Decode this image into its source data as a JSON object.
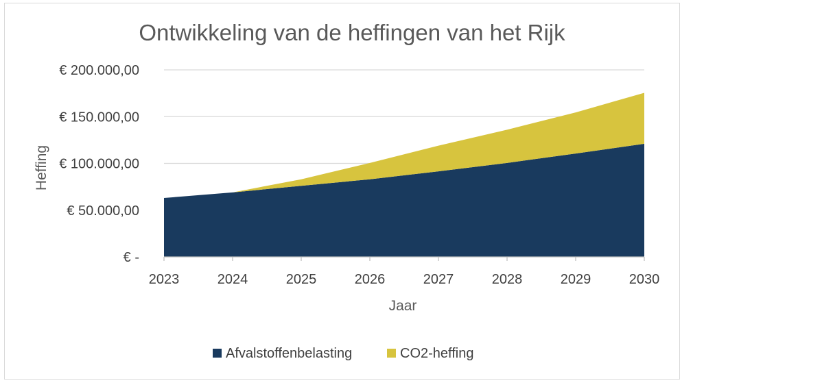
{
  "chart_data": {
    "type": "area",
    "stacked": true,
    "title": "Ontwikkeling van de heffingen van het Rijk",
    "xlabel": "Jaar",
    "ylabel": "Heffing",
    "categories": [
      "2023",
      "2024",
      "2025",
      "2026",
      "2027",
      "2028",
      "2029",
      "2030"
    ],
    "yticks": [
      {
        "value": 0,
        "label": "€ -"
      },
      {
        "value": 50000,
        "label": "€ 50.000,00"
      },
      {
        "value": 100000,
        "label": "€ 100.000,00"
      },
      {
        "value": 150000,
        "label": "€ 150.000,00"
      },
      {
        "value": 200000,
        "label": "€ 200.000,00"
      }
    ],
    "ylim": [
      0,
      200000
    ],
    "grid": true,
    "legend_position": "bottom",
    "series": [
      {
        "name": "Afvalstoffenbelasting",
        "color": "#193a5e",
        "values": [
          63000,
          69000,
          76000,
          83000,
          91500,
          100500,
          110500,
          121000
        ]
      },
      {
        "name": "CO2-heffing",
        "color": "#d7c43e",
        "values": [
          0,
          0,
          7000,
          17500,
          27500,
          35500,
          44000,
          54500
        ]
      }
    ]
  }
}
